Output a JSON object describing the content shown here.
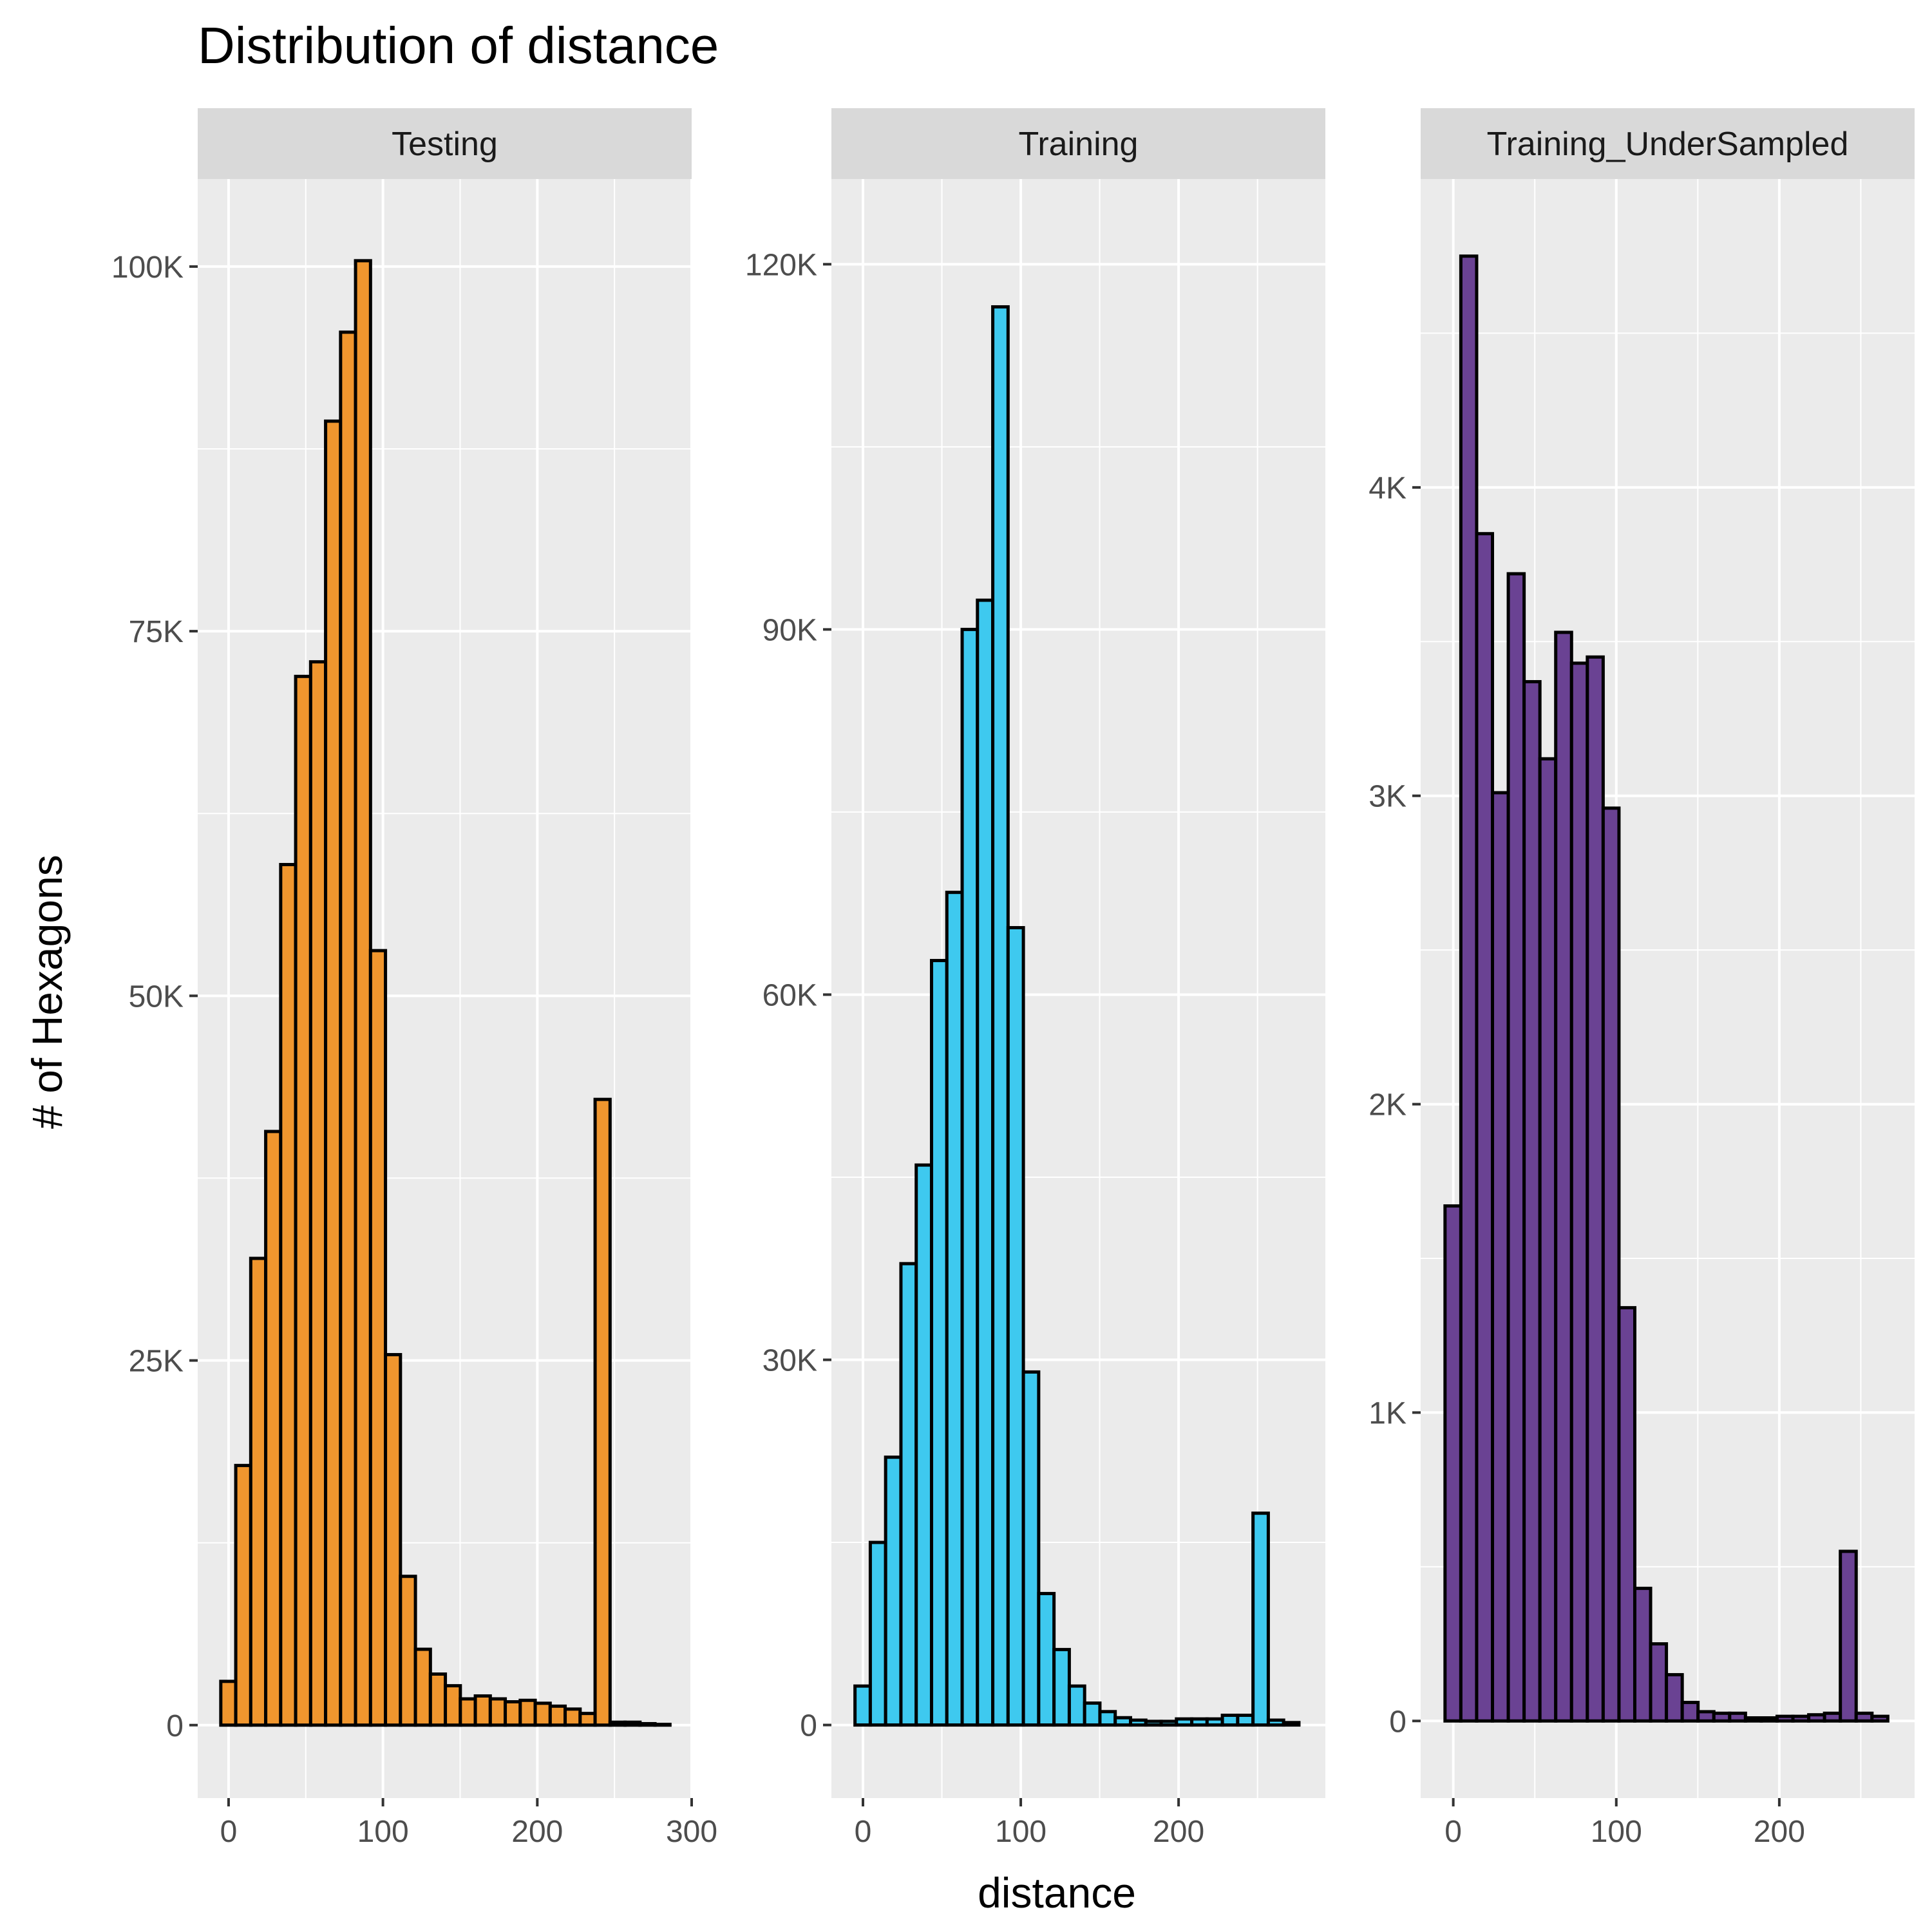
{
  "title": "Distribution of distance",
  "xlabel": "distance",
  "ylabel": "# of Hexagons",
  "colors": {
    "panel_background": "#ebebeb",
    "strip_background": "#d9d9d9",
    "grid": "#ffffff",
    "bar_outline": "#000000",
    "tick_text": "#4d4d4d"
  },
  "chart_data": [
    {
      "type": "bar",
      "facet": "Testing",
      "color": "#f0962e",
      "bin_width": 9.7,
      "bin_centers": [
        -0.2,
        9.5,
        19.2,
        28.9,
        38.6,
        48.3,
        58.0,
        67.7,
        77.4,
        87.1,
        96.8,
        106.5,
        116.2,
        125.9,
        135.6,
        145.3,
        155.0,
        164.7,
        174.4,
        184.1,
        193.8,
        203.5,
        213.2,
        222.9,
        232.6,
        242.3,
        252.0,
        261.7,
        271.4,
        281.1
      ],
      "values": [
        3000,
        17800,
        32000,
        40700,
        59000,
        71900,
        72900,
        89400,
        95500,
        100400,
        53100,
        25400,
        10200,
        5200,
        3500,
        2700,
        1800,
        2000,
        1800,
        1600,
        1700,
        1500,
        1300,
        1100,
        800,
        42900,
        200,
        200,
        100,
        50
      ],
      "xlim": [
        -20,
        300
      ],
      "ylim": [
        -5000,
        106000
      ],
      "xticks": [
        0,
        100,
        200,
        300
      ],
      "xtick_labels": [
        "0",
        "100",
        "200",
        "300"
      ],
      "yticks": [
        0,
        25000,
        50000,
        75000,
        100000
      ],
      "ytick_labels": [
        "0",
        "25K",
        "50K",
        "75K",
        "100K"
      ]
    },
    {
      "type": "bar",
      "facet": "Training",
      "color": "#3ec9ef",
      "bin_width": 9.7,
      "bin_centers": [
        -0.2,
        9.5,
        19.2,
        28.9,
        38.6,
        48.3,
        58.0,
        67.7,
        77.4,
        87.1,
        96.8,
        106.5,
        116.2,
        125.9,
        135.6,
        145.3,
        155.0,
        164.7,
        174.4,
        184.1,
        193.8,
        203.5,
        213.2,
        222.9,
        232.6,
        242.3,
        252.0,
        261.7,
        271.4
      ],
      "values": [
        3200,
        15000,
        22000,
        37900,
        46000,
        62800,
        68400,
        90000,
        92400,
        116500,
        65500,
        29000,
        10800,
        6200,
        3200,
        1800,
        1100,
        600,
        400,
        300,
        300,
        500,
        500,
        500,
        800,
        800,
        17400,
        400,
        200
      ],
      "xlim": [
        -20,
        293
      ],
      "ylim": [
        -6000,
        127000
      ],
      "xticks": [
        0,
        100,
        200
      ],
      "xtick_labels": [
        "0",
        "100",
        "200"
      ],
      "yticks": [
        0,
        30000,
        60000,
        90000,
        120000
      ],
      "ytick_labels": [
        "0",
        "30K",
        "60K",
        "90K",
        "120K"
      ]
    },
    {
      "type": "bar",
      "facet": "Training_UnderSampled",
      "color": "#6a4293",
      "bin_width": 9.7,
      "bin_centers": [
        -0.2,
        9.5,
        19.2,
        28.9,
        38.6,
        48.3,
        58.0,
        67.7,
        77.4,
        87.1,
        96.8,
        106.5,
        116.2,
        125.9,
        135.6,
        145.3,
        155.0,
        164.7,
        174.4,
        184.1,
        193.8,
        203.5,
        213.2,
        222.9,
        232.6,
        242.3,
        252.0,
        261.7
      ],
      "values": [
        1670,
        4750,
        3850,
        3010,
        3720,
        3370,
        3120,
        3530,
        3430,
        3450,
        2960,
        1340,
        430,
        250,
        150,
        60,
        30,
        25,
        25,
        10,
        10,
        15,
        15,
        20,
        25,
        550,
        25,
        15
      ],
      "xlim": [
        -20,
        283
      ],
      "ylim": [
        -250,
        5000
      ],
      "xticks": [
        0,
        100,
        200
      ],
      "xtick_labels": [
        "0",
        "100",
        "200"
      ],
      "yticks": [
        0,
        1000,
        2000,
        3000,
        4000
      ],
      "ytick_labels": [
        "0",
        "1K",
        "2K",
        "3K",
        "4K"
      ]
    }
  ]
}
